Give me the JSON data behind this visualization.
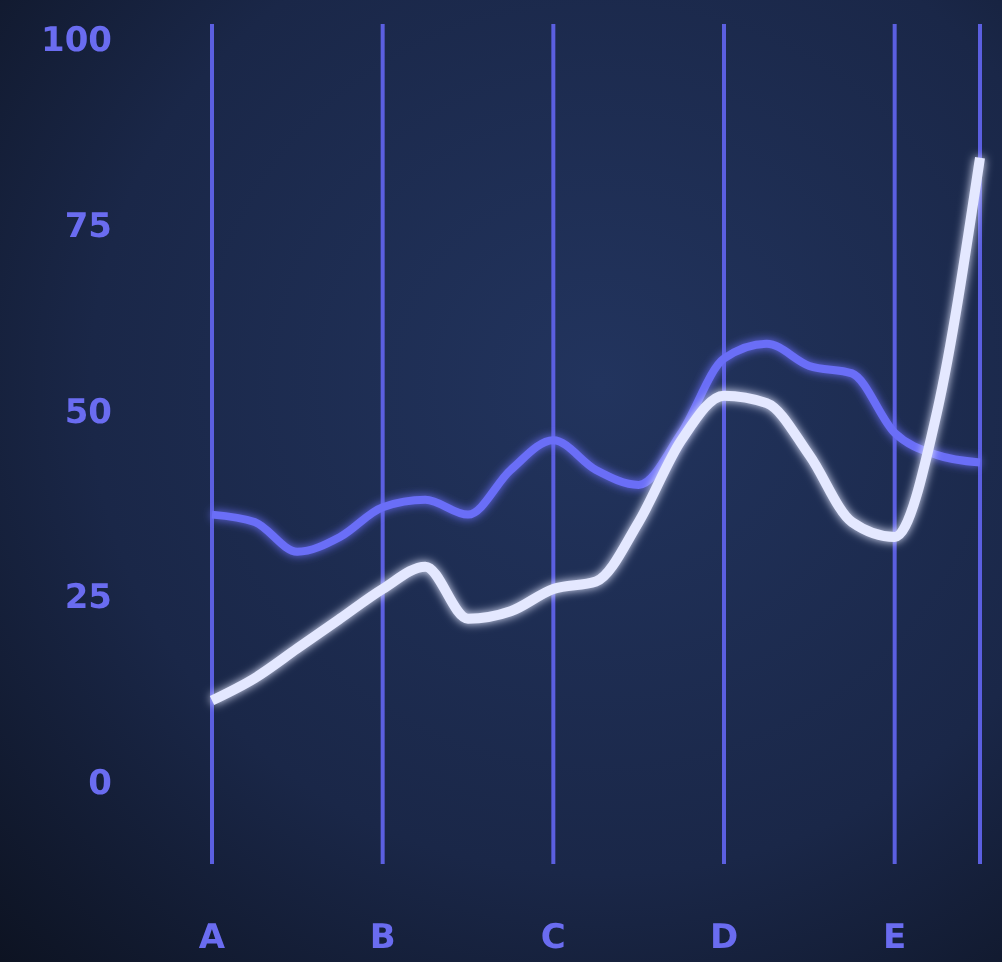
{
  "chart_data": {
    "type": "line",
    "categories": [
      "A",
      null,
      null,
      null,
      "B",
      null,
      null,
      null,
      "C",
      null,
      null,
      null,
      "D",
      null,
      null,
      null,
      "E",
      null,
      null
    ],
    "ylim": [
      -11,
      102
    ],
    "yticks": [
      0,
      25,
      50,
      75,
      100
    ],
    "grid": "x",
    "legend": false,
    "marker": "none",
    "line_style": "solid",
    "series": [
      {
        "color": "#6b6ef7",
        "values": [
          36,
          35,
          31,
          33,
          37,
          38,
          36,
          42,
          46,
          42,
          40,
          47,
          57,
          59,
          56,
          55,
          47,
          44,
          43
        ]
      },
      {
        "color": "#e4e8ff",
        "values": [
          11,
          14,
          18,
          22,
          26,
          29,
          22,
          23,
          26,
          27,
          35,
          46,
          52,
          51,
          44,
          35,
          33,
          50,
          84
        ]
      }
    ]
  }
}
